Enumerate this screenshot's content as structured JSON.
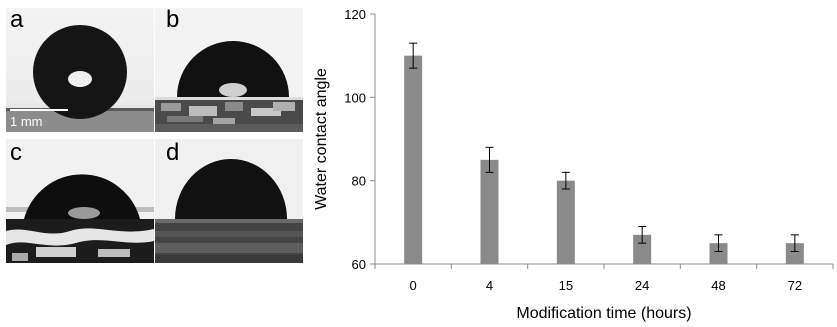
{
  "panels": {
    "labels": [
      "a",
      "b",
      "c",
      "d"
    ],
    "scale_bar": "1 mm"
  },
  "chart_data": {
    "type": "bar",
    "categories": [
      "0",
      "4",
      "15",
      "24",
      "48",
      "72"
    ],
    "values": [
      110,
      85,
      80,
      67,
      65,
      65
    ],
    "errors": [
      3,
      3,
      2,
      2,
      2,
      2
    ],
    "xlabel": "Modification time (hours)",
    "ylabel": "Water contact angle",
    "ylim": [
      60,
      120
    ],
    "yticks": [
      60,
      80,
      100,
      120
    ],
    "grid": false,
    "bar_color": "#8a8a8a"
  }
}
